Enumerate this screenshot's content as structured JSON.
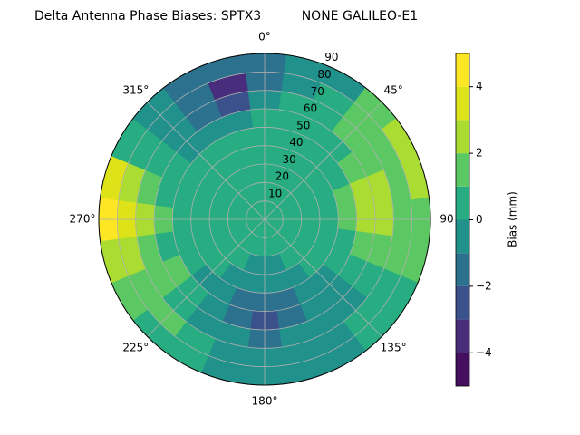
{
  "chart_data": {
    "type": "polar-contour",
    "title": "Delta Antenna Phase Biases: SPTX3          NONE GALILEO-E1",
    "colorbar_label": "Bias (mm)",
    "azimuth": [
      0,
      15,
      30,
      45,
      60,
      75,
      90,
      105,
      120,
      135,
      150,
      165,
      180,
      195,
      210,
      225,
      240,
      255,
      270,
      285,
      300,
      315,
      330,
      345
    ],
    "radius": [
      5,
      15,
      25,
      35,
      45,
      55,
      65,
      75,
      85
    ],
    "z": [
      [
        0.5,
        0.5,
        0.5,
        0.5,
        0.5,
        0.5,
        0.5,
        0.5,
        0.5,
        0.5,
        0.5,
        0.5,
        0.5,
        0.5,
        0.5,
        0.5,
        0.5,
        0.5,
        0.5,
        0.5,
        0.5,
        0.5,
        0.5,
        0.5
      ],
      [
        0.5,
        0.5,
        0.5,
        0.5,
        0.5,
        0.5,
        0.5,
        0.5,
        0.5,
        0.5,
        0.5,
        0.5,
        0.5,
        0.5,
        0.5,
        0.5,
        0.5,
        0.5,
        0.5,
        0.5,
        0.5,
        0.5,
        0.5,
        0.5
      ],
      [
        0.5,
        0.5,
        0.5,
        0.5,
        0.5,
        0.5,
        0.5,
        0.5,
        0.5,
        0.5,
        0.5,
        -0.5,
        -0.5,
        -0.5,
        0.5,
        0.5,
        0.5,
        0.5,
        0.5,
        0.5,
        0.5,
        0.5,
        0.5,
        0.5
      ],
      [
        0.5,
        0.5,
        0.5,
        0.5,
        0.5,
        0.5,
        0.5,
        0.5,
        0.5,
        0.5,
        -0.5,
        -0.5,
        -0.5,
        -0.5,
        -0.5,
        0.5,
        0.5,
        0.5,
        0.5,
        0.5,
        0.5,
        0.5,
        0.5,
        0.5
      ],
      [
        0.5,
        0.5,
        0.5,
        0.5,
        0.5,
        1.5,
        1.5,
        0.5,
        0.5,
        -0.5,
        -0.5,
        -1.5,
        -1.5,
        -1.5,
        -0.5,
        -0.5,
        0.5,
        0.5,
        0.5,
        0.5,
        0.5,
        0.5,
        0.5,
        0.5
      ],
      [
        0.5,
        0.5,
        0.5,
        0.5,
        1.5,
        2.5,
        2.5,
        1.5,
        0.5,
        -0.5,
        -0.5,
        -1.5,
        -2.5,
        -1.5,
        -0.5,
        0.5,
        1.5,
        0.5,
        1.5,
        0.5,
        0.5,
        -0.5,
        -0.5,
        -0.5
      ],
      [
        -0.5,
        0.5,
        0.5,
        1.5,
        1.5,
        2.5,
        2.5,
        1.5,
        0.5,
        -0.5,
        -0.5,
        -0.5,
        -1.5,
        -0.5,
        -0.5,
        0.5,
        1.5,
        1.5,
        2.5,
        1.5,
        0.5,
        -0.5,
        -1.5,
        -2.5
      ],
      [
        -1.5,
        -0.5,
        0.5,
        1.5,
        1.5,
        1.5,
        1.5,
        1.5,
        0.5,
        0.5,
        -0.5,
        -0.5,
        -0.5,
        -0.5,
        0.5,
        1.5,
        1.5,
        2.5,
        3.5,
        2.5,
        0.5,
        -0.5,
        -1.5,
        -3.5
      ],
      [
        -1.5,
        -0.5,
        -0.5,
        1.5,
        2.5,
        2.5,
        1.5,
        1.5,
        0.5,
        0.5,
        -0.5,
        -0.5,
        -0.5,
        -0.5,
        0.5,
        0.5,
        1.5,
        2.5,
        4.5,
        3.5,
        0.5,
        -0.5,
        -1.5,
        -1.5
      ]
    ],
    "levels": [
      -5,
      -4,
      -3,
      -2,
      -1,
      0,
      1,
      2,
      3,
      4,
      5
    ],
    "colors": [
      "#440f5e",
      "#472d7b",
      "#3b518b",
      "#2c718e",
      "#21918c",
      "#27ad81",
      "#5cc863",
      "#aadc32",
      "#dde318",
      "#fde725"
    ],
    "rlim": [
      0,
      90
    ],
    "rticks": [
      10,
      20,
      30,
      40,
      50,
      60,
      70,
      80,
      90
    ],
    "thetaticks": [
      {
        "value": 0,
        "label": "0°"
      },
      {
        "value": 45,
        "label": "45°"
      },
      90,
      {
        "value": 135,
        "label": "135°"
      },
      {
        "value": 180,
        "label": "180°"
      },
      {
        "value": 225,
        "label": "225°"
      },
      {
        "value": 270,
        "label": "270°"
      },
      {
        "value": 315,
        "label": "315°"
      }
    ],
    "clim": [
      -5,
      5
    ],
    "cticks": [
      {
        "value": -4,
        "label": "−4"
      },
      {
        "value": -2,
        "label": "−2"
      },
      0,
      2,
      4
    ],
    "grid": true
  }
}
